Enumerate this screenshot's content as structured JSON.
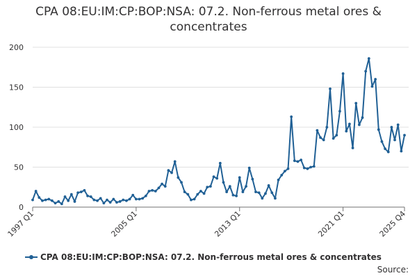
{
  "title": "CPA 08:EU:IM:CP:BOP:NSA: 07.2. Non-ferrous metal ores & concentrates",
  "title_lines": [
    "CPA 08:EU:IM:CP:BOP:NSA: 07.2. Non-ferrous metal ores &",
    "concentrates"
  ],
  "source_label": "Source:",
  "colors": {
    "series": "#206095",
    "grid": "#e0e0e0",
    "axis": "#707071",
    "text": "#323132"
  },
  "chart_data": {
    "type": "line",
    "title": "CPA 08:EU:IM:CP:BOP:NSA: 07.2. Non-ferrous metal ores & concentrates",
    "xlabel": "",
    "ylabel": "",
    "ylim": [
      0,
      200
    ],
    "yticks": [
      0,
      50,
      100,
      150,
      200
    ],
    "xticks": [
      "1997 Q1",
      "2005 Q1",
      "2013 Q1",
      "2021 Q1",
      "2025 Q4"
    ],
    "grid": true,
    "legend_position": "bottom",
    "series": [
      {
        "name": "CPA 08:EU:IM:CP:BOP:NSA: 07.2. Non-ferrous metal ores & concentrates",
        "color": "#206095",
        "start": "1997 Q1",
        "end": "2025 Q4",
        "values": [
          9,
          20,
          12,
          8,
          9,
          10,
          8,
          5,
          7,
          4,
          13,
          8,
          16,
          7,
          18,
          19,
          21,
          14,
          13,
          9,
          8,
          11,
          5,
          9,
          6,
          10,
          6,
          7,
          9,
          8,
          10,
          15,
          10,
          10,
          11,
          14,
          20,
          21,
          20,
          24,
          29,
          26,
          46,
          43,
          57,
          37,
          31,
          19,
          16,
          9,
          10,
          16,
          20,
          17,
          25,
          26,
          38,
          36,
          55,
          31,
          19,
          26,
          15,
          14,
          37,
          19,
          26,
          49,
          35,
          19,
          18,
          11,
          17,
          27,
          18,
          11,
          34,
          40,
          45,
          48,
          113,
          58,
          57,
          59,
          49,
          48,
          50,
          51,
          96,
          87,
          84,
          100,
          148,
          86,
          90,
          120,
          167,
          95,
          104,
          74,
          130,
          103,
          112,
          170,
          186,
          151,
          160,
          97,
          82,
          73,
          69,
          100,
          84,
          103,
          70,
          90
        ]
      }
    ]
  }
}
